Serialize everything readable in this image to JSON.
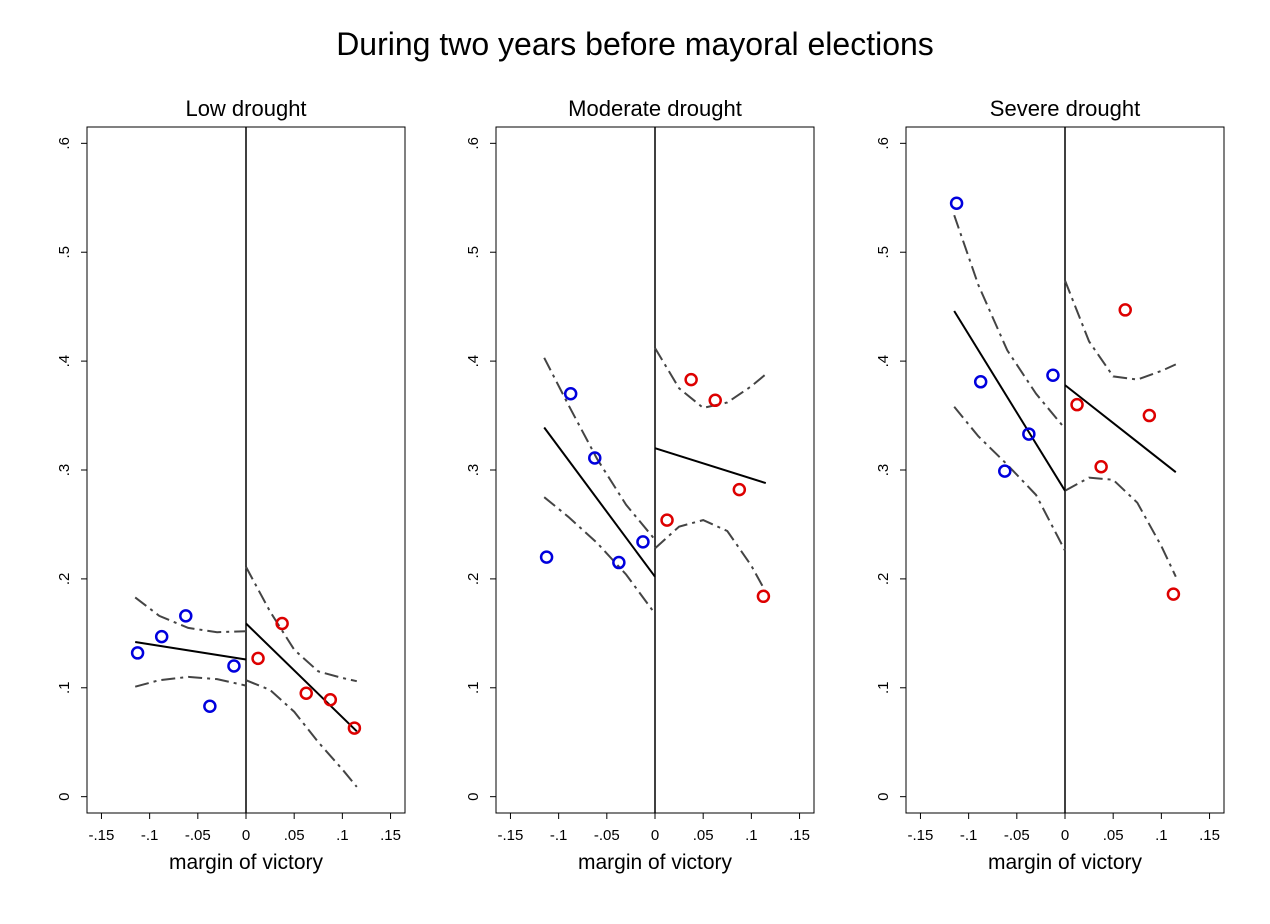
{
  "title": "During two years before mayoral elections",
  "colors": {
    "left": "#0000dd",
    "right": "#dd0000",
    "fit": "#000000",
    "ci": "#444444"
  },
  "chart_data": [
    {
      "type": "scatter",
      "title": "Low drought",
      "xlabel": "margin of victory",
      "ylabel": "",
      "xlim": [
        -0.165,
        0.165
      ],
      "ylim": [
        -0.015,
        0.615
      ],
      "xticks": [
        "-.15",
        "-.1",
        "-.05",
        "0",
        ".05",
        ".1",
        ".15"
      ],
      "xtick_values": [
        -0.15,
        -0.1,
        -0.05,
        0,
        0.05,
        0.1,
        0.15
      ],
      "yticks": [
        "0",
        ".1",
        ".2",
        ".3",
        ".4",
        ".5",
        ".6"
      ],
      "ytick_values": [
        0,
        0.1,
        0.2,
        0.3,
        0.4,
        0.5,
        0.6
      ],
      "grid": false,
      "series": [
        {
          "side": "left",
          "points": [
            [
              -0.1125,
              0.132
            ],
            [
              -0.0875,
              0.147
            ],
            [
              -0.0625,
              0.166
            ],
            [
              -0.0375,
              0.083
            ],
            [
              -0.0125,
              0.12
            ]
          ]
        },
        {
          "side": "right",
          "points": [
            [
              0.0125,
              0.127
            ],
            [
              0.0375,
              0.159
            ],
            [
              0.0625,
              0.095
            ],
            [
              0.0875,
              0.089
            ],
            [
              0.1125,
              0.063
            ]
          ]
        }
      ],
      "fit": [
        {
          "x": [
            -0.115,
            0
          ],
          "y": [
            0.142,
            0.126
          ]
        },
        {
          "x": [
            0,
            0.115
          ],
          "y": [
            0.159,
            0.06
          ]
        }
      ],
      "ci_upper": [
        {
          "x": [
            -0.115,
            -0.09,
            -0.06,
            -0.03,
            0
          ],
          "y": [
            0.183,
            0.166,
            0.155,
            0.151,
            0.152
          ]
        },
        {
          "x": [
            0,
            0.025,
            0.05,
            0.075,
            0.1,
            0.115
          ],
          "y": [
            0.211,
            0.17,
            0.135,
            0.115,
            0.109,
            0.106
          ]
        }
      ],
      "ci_lower": [
        {
          "x": [
            -0.115,
            -0.09,
            -0.06,
            -0.03,
            0
          ],
          "y": [
            0.101,
            0.107,
            0.11,
            0.108,
            0.102
          ]
        },
        {
          "x": [
            0,
            0.025,
            0.05,
            0.075,
            0.1,
            0.115
          ],
          "y": [
            0.107,
            0.098,
            0.078,
            0.05,
            0.025,
            0.009
          ]
        }
      ]
    },
    {
      "type": "scatter",
      "title": "Moderate drought",
      "xlabel": "margin of victory",
      "ylabel": "",
      "xlim": [
        -0.165,
        0.165
      ],
      "ylim": [
        -0.015,
        0.615
      ],
      "xticks": [
        "-.15",
        "-.1",
        "-.05",
        "0",
        ".05",
        ".1",
        ".15"
      ],
      "xtick_values": [
        -0.15,
        -0.1,
        -0.05,
        0,
        0.05,
        0.1,
        0.15
      ],
      "yticks": [
        "0",
        ".1",
        ".2",
        ".3",
        ".4",
        ".5",
        ".6"
      ],
      "ytick_values": [
        0,
        0.1,
        0.2,
        0.3,
        0.4,
        0.5,
        0.6
      ],
      "grid": false,
      "series": [
        {
          "side": "left",
          "points": [
            [
              -0.1125,
              0.22
            ],
            [
              -0.0875,
              0.37
            ],
            [
              -0.0625,
              0.311
            ],
            [
              -0.0375,
              0.215
            ],
            [
              -0.0125,
              0.234
            ]
          ]
        },
        {
          "side": "right",
          "points": [
            [
              0.0125,
              0.254
            ],
            [
              0.0375,
              0.383
            ],
            [
              0.0625,
              0.364
            ],
            [
              0.0875,
              0.282
            ],
            [
              0.1125,
              0.184
            ]
          ]
        }
      ],
      "fit": [
        {
          "x": [
            -0.115,
            0
          ],
          "y": [
            0.339,
            0.202
          ]
        },
        {
          "x": [
            0,
            0.115
          ],
          "y": [
            0.32,
            0.288
          ]
        }
      ],
      "ci_upper": [
        {
          "x": [
            -0.115,
            -0.09,
            -0.06,
            -0.03,
            0
          ],
          "y": [
            0.403,
            0.36,
            0.31,
            0.268,
            0.236
          ]
        },
        {
          "x": [
            0,
            0.025,
            0.05,
            0.075,
            0.1,
            0.115
          ],
          "y": [
            0.412,
            0.375,
            0.357,
            0.362,
            0.377,
            0.388
          ]
        }
      ],
      "ci_lower": [
        {
          "x": [
            -0.115,
            -0.09,
            -0.06,
            -0.03,
            0
          ],
          "y": [
            0.275,
            0.257,
            0.233,
            0.204,
            0.168
          ]
        },
        {
          "x": [
            0,
            0.025,
            0.05,
            0.075,
            0.1,
            0.115
          ],
          "y": [
            0.228,
            0.248,
            0.254,
            0.244,
            0.212,
            0.188
          ]
        }
      ]
    },
    {
      "type": "scatter",
      "title": "Severe drought",
      "xlabel": "margin of victory",
      "ylabel": "",
      "xlim": [
        -0.165,
        0.165
      ],
      "ylim": [
        -0.015,
        0.615
      ],
      "xticks": [
        "-.15",
        "-.1",
        "-.05",
        "0",
        ".05",
        ".1",
        ".15"
      ],
      "xtick_values": [
        -0.15,
        -0.1,
        -0.05,
        0,
        0.05,
        0.1,
        0.15
      ],
      "yticks": [
        "0",
        ".1",
        ".2",
        ".3",
        ".4",
        ".5",
        ".6"
      ],
      "ytick_values": [
        0,
        0.1,
        0.2,
        0.3,
        0.4,
        0.5,
        0.6
      ],
      "grid": false,
      "series": [
        {
          "side": "left",
          "points": [
            [
              -0.1125,
              0.545
            ],
            [
              -0.0875,
              0.381
            ],
            [
              -0.0625,
              0.299
            ],
            [
              -0.0375,
              0.333
            ],
            [
              -0.0125,
              0.387
            ]
          ]
        },
        {
          "side": "right",
          "points": [
            [
              0.0125,
              0.36
            ],
            [
              0.0375,
              0.303
            ],
            [
              0.0625,
              0.447
            ],
            [
              0.0875,
              0.35
            ],
            [
              0.1125,
              0.186
            ]
          ]
        }
      ],
      "fit": [
        {
          "x": [
            -0.115,
            0
          ],
          "y": [
            0.446,
            0.281
          ]
        },
        {
          "x": [
            0,
            0.115
          ],
          "y": [
            0.378,
            0.298
          ]
        }
      ],
      "ci_upper": [
        {
          "x": [
            -0.115,
            -0.09,
            -0.06,
            -0.03,
            0
          ],
          "y": [
            0.534,
            0.47,
            0.41,
            0.37,
            0.338
          ]
        },
        {
          "x": [
            0,
            0.025,
            0.05,
            0.075,
            0.1,
            0.115
          ],
          "y": [
            0.474,
            0.418,
            0.386,
            0.383,
            0.391,
            0.397
          ]
        }
      ],
      "ci_lower": [
        {
          "x": [
            -0.115,
            -0.09,
            -0.06,
            -0.03,
            0
          ],
          "y": [
            0.358,
            0.331,
            0.305,
            0.277,
            0.226
          ]
        },
        {
          "x": [
            0,
            0.025,
            0.05,
            0.075,
            0.1,
            0.115
          ],
          "y": [
            0.281,
            0.293,
            0.291,
            0.27,
            0.23,
            0.202
          ]
        }
      ]
    }
  ]
}
